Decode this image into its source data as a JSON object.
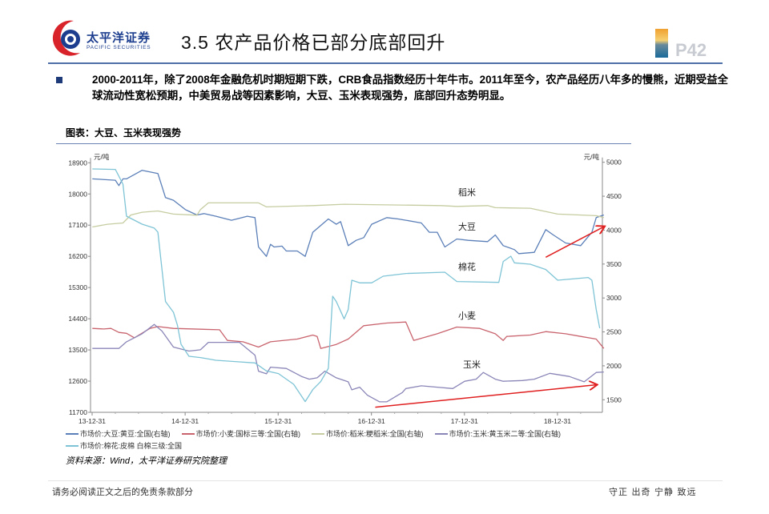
{
  "header": {
    "logo_cn": "太平洋证券",
    "logo_en": "PACIFIC SECURITIES",
    "title": "3.5 农产品价格已部分底部回升",
    "page_number": "P42"
  },
  "body": {
    "bullet_text": "2000-2011年，除了2008年金融危机时期短期下跌，CRB食品指数经历十年牛市。2011年至今，农产品经历八年多的慢熊，近期受益全球流动性宽松预期，中美贸易战等因素影响，大豆、玉米表现强势，底部回升态势明显。"
  },
  "chart_title": "图表：大豆、玉米表现强势",
  "source": "资料来源：Wind，太平洋证券研究院整理",
  "footer": {
    "left": "请务必阅读正文之后的免责条款部分",
    "right": "守正 出奇 宁静 致远"
  },
  "chart_data": {
    "type": "line",
    "left_axis": {
      "unit": "元/吨",
      "ylim": [
        11700,
        18900
      ],
      "ticks": [
        "18900",
        "18000",
        "17100",
        "16200",
        "15300",
        "14400",
        "13500",
        "12600",
        "11700"
      ]
    },
    "right_axis": {
      "unit": "元/吨",
      "ylim": [
        1500,
        5000
      ],
      "ticks": [
        "5000",
        "4500",
        "4000",
        "3500",
        "3000",
        "2500",
        "2000",
        "1500"
      ]
    },
    "x_ticks": [
      "13-12-31",
      "14-12-31",
      "15-12-31",
      "16-12-31",
      "17-12-31",
      "18-12-31"
    ],
    "x_tick_dates": [
      "2013-12-31",
      "2014-12-31",
      "2015-12-31",
      "2016-12-31",
      "2017-12-31",
      "2018-12-31"
    ],
    "grid": false,
    "legend_position": "bottom",
    "series_labels": {
      "rice": "稻米",
      "soybean": "大豆",
      "cotton": "棉花",
      "wheat": "小麦",
      "corn": "玉米"
    },
    "series": [
      {
        "key": "soybean",
        "name": "市场价:大豆:黄豆:全国(右轴)",
        "axis": "right",
        "color": "#5b7fb8",
        "points": [
          [
            "2014-01-01",
            4756
          ],
          [
            "2014-04-01",
            4736
          ],
          [
            "2014-04-15",
            4657
          ],
          [
            "2014-05-01",
            4756
          ],
          [
            "2014-05-15",
            4756
          ],
          [
            "2014-07-15",
            4882
          ],
          [
            "2014-09-15",
            4835
          ],
          [
            "2014-10-15",
            4480
          ],
          [
            "2014-11-15",
            4441
          ],
          [
            "2015-01-01",
            4303
          ],
          [
            "2015-02-15",
            4224
          ],
          [
            "2015-03-15",
            4244
          ],
          [
            "2015-05-01",
            4205
          ],
          [
            "2015-07-01",
            4146
          ],
          [
            "2015-09-01",
            4205
          ],
          [
            "2015-10-01",
            4185
          ],
          [
            "2015-10-15",
            3752
          ],
          [
            "2015-11-15",
            3614
          ],
          [
            "2015-12-01",
            3791
          ],
          [
            "2015-12-15",
            3752
          ],
          [
            "2016-01-15",
            3764
          ],
          [
            "2016-02-01",
            3693
          ],
          [
            "2016-03-15",
            3693
          ],
          [
            "2016-04-15",
            3614
          ],
          [
            "2016-05-15",
            3969
          ],
          [
            "2016-07-15",
            4165
          ],
          [
            "2016-08-15",
            4087
          ],
          [
            "2016-09-01",
            4126
          ],
          [
            "2016-10-01",
            3772
          ],
          [
            "2016-11-01",
            3850
          ],
          [
            "2016-12-01",
            3890
          ],
          [
            "2017-01-01",
            4087
          ],
          [
            "2017-03-01",
            4185
          ],
          [
            "2017-04-15",
            4165
          ],
          [
            "2017-05-15",
            4146
          ],
          [
            "2017-07-15",
            4106
          ],
          [
            "2017-08-15",
            3969
          ],
          [
            "2017-09-15",
            3969
          ],
          [
            "2017-10-15",
            3752
          ],
          [
            "2017-12-01",
            3870
          ],
          [
            "2018-01-15",
            3850
          ],
          [
            "2018-04-01",
            3831
          ],
          [
            "2018-05-01",
            3929
          ],
          [
            "2018-06-01",
            3772
          ],
          [
            "2018-07-15",
            3713
          ],
          [
            "2018-08-01",
            3654
          ],
          [
            "2018-10-01",
            3673
          ],
          [
            "2018-11-15",
            4008
          ],
          [
            "2018-12-15",
            3929
          ],
          [
            "2019-02-01",
            3811
          ],
          [
            "2019-04-01",
            3772
          ],
          [
            "2019-05-15",
            3969
          ],
          [
            "2019-06-01",
            4185
          ],
          [
            "2019-07-01",
            4224
          ]
        ]
      },
      {
        "key": "wheat",
        "name": "市场价:小麦:国标三等:全国(右轴)",
        "axis": "right",
        "color": "#c9646e",
        "points": [
          [
            "2014-01-01",
            2551
          ],
          [
            "2014-02-15",
            2543
          ],
          [
            "2014-03-15",
            2551
          ],
          [
            "2014-04-15",
            2492
          ],
          [
            "2014-05-15",
            2480
          ],
          [
            "2014-06-15",
            2413
          ],
          [
            "2014-08-15",
            2551
          ],
          [
            "2014-09-15",
            2579
          ],
          [
            "2014-11-15",
            2551
          ],
          [
            "2015-05-15",
            2531
          ],
          [
            "2015-06-15",
            2374
          ],
          [
            "2015-08-15",
            2354
          ],
          [
            "2015-10-15",
            2276
          ],
          [
            "2015-12-01",
            2354
          ],
          [
            "2016-03-15",
            2394
          ],
          [
            "2016-05-15",
            2453
          ],
          [
            "2016-06-01",
            2433
          ],
          [
            "2016-06-15",
            2256
          ],
          [
            "2016-08-15",
            2315
          ],
          [
            "2016-10-01",
            2394
          ],
          [
            "2016-12-01",
            2591
          ],
          [
            "2017-03-01",
            2630
          ],
          [
            "2017-05-15",
            2646
          ],
          [
            "2017-06-15",
            2374
          ],
          [
            "2017-09-15",
            2472
          ],
          [
            "2017-12-01",
            2571
          ],
          [
            "2018-03-01",
            2551
          ],
          [
            "2018-05-01",
            2472
          ],
          [
            "2018-06-01",
            2374
          ],
          [
            "2018-06-15",
            2433
          ],
          [
            "2018-09-15",
            2453
          ],
          [
            "2018-11-15",
            2504
          ],
          [
            "2019-02-01",
            2472
          ],
          [
            "2019-04-01",
            2433
          ],
          [
            "2019-06-01",
            2394
          ],
          [
            "2019-07-01",
            2256
          ]
        ]
      },
      {
        "key": "rice",
        "name": "市场价:稻米:粳稻米:全国(右轴)",
        "axis": "right",
        "color": "#c6ccA0",
        "points": [
          [
            "2014-01-01",
            4047
          ],
          [
            "2014-03-01",
            4087
          ],
          [
            "2014-05-01",
            4106
          ],
          [
            "2014-06-01",
            4224
          ],
          [
            "2014-07-15",
            4264
          ],
          [
            "2014-09-15",
            4283
          ],
          [
            "2014-11-15",
            4236
          ],
          [
            "2015-02-15",
            4220
          ],
          [
            "2015-03-01",
            4303
          ],
          [
            "2015-04-01",
            4402
          ],
          [
            "2015-10-15",
            4402
          ],
          [
            "2015-11-15",
            4343
          ],
          [
            "2016-05-15",
            4362
          ],
          [
            "2016-09-15",
            4382
          ],
          [
            "2017-10-01",
            4362
          ],
          [
            "2017-12-01",
            4350
          ],
          [
            "2018-04-01",
            4362
          ],
          [
            "2018-05-01",
            4331
          ],
          [
            "2018-09-15",
            4323
          ],
          [
            "2019-01-01",
            4236
          ],
          [
            "2019-06-01",
            4213
          ],
          [
            "2019-07-01",
            4185
          ]
        ]
      },
      {
        "key": "corn",
        "name": "市场价:玉米:黄玉米二等:全国(右轴)",
        "axis": "right",
        "color": "#8a86b8",
        "points": [
          [
            "2014-01-01",
            2256
          ],
          [
            "2014-04-15",
            2256
          ],
          [
            "2014-05-15",
            2354
          ],
          [
            "2014-07-15",
            2472
          ],
          [
            "2014-09-01",
            2610
          ],
          [
            "2014-10-01",
            2512
          ],
          [
            "2014-11-15",
            2276
          ],
          [
            "2015-01-15",
            2217
          ],
          [
            "2015-03-01",
            2236
          ],
          [
            "2015-04-01",
            2346
          ],
          [
            "2015-08-01",
            2346
          ],
          [
            "2015-10-01",
            2157
          ],
          [
            "2015-10-15",
            1921
          ],
          [
            "2015-11-15",
            1882
          ],
          [
            "2015-12-01",
            1980
          ],
          [
            "2016-02-01",
            1961
          ],
          [
            "2016-04-01",
            1843
          ],
          [
            "2016-05-01",
            1803
          ],
          [
            "2016-06-01",
            1823
          ],
          [
            "2016-07-01",
            1921
          ],
          [
            "2016-08-15",
            1823
          ],
          [
            "2016-10-01",
            1764
          ],
          [
            "2016-10-15",
            1646
          ],
          [
            "2016-11-15",
            1685
          ],
          [
            "2016-12-15",
            1567
          ],
          [
            "2017-02-01",
            1469
          ],
          [
            "2017-03-01",
            1469
          ],
          [
            "2017-05-01",
            1606
          ],
          [
            "2017-05-15",
            1665
          ],
          [
            "2017-07-15",
            1705
          ],
          [
            "2017-09-15",
            1685
          ],
          [
            "2017-11-15",
            1665
          ],
          [
            "2018-01-01",
            1772
          ],
          [
            "2018-02-15",
            1803
          ],
          [
            "2018-03-15",
            1902
          ],
          [
            "2018-05-01",
            1803
          ],
          [
            "2018-06-01",
            1772
          ],
          [
            "2018-08-15",
            1783
          ],
          [
            "2018-10-01",
            1803
          ],
          [
            "2018-12-01",
            1890
          ],
          [
            "2019-02-15",
            1843
          ],
          [
            "2019-04-15",
            1764
          ],
          [
            "2019-06-01",
            1902
          ],
          [
            "2019-07-01",
            1909
          ]
        ]
      },
      {
        "key": "cotton",
        "name": "市场价:棉花:皮棉 白棉三级:全国",
        "axis": "left",
        "color": "#7ec4d6",
        "points": [
          [
            "2014-01-01",
            18723
          ],
          [
            "2014-04-01",
            18708
          ],
          [
            "2014-05-01",
            18284
          ],
          [
            "2014-05-15",
            17360
          ],
          [
            "2014-07-15",
            17129
          ],
          [
            "2014-09-01",
            17014
          ],
          [
            "2014-09-15",
            16898
          ],
          [
            "2014-10-15",
            14896
          ],
          [
            "2014-11-15",
            14588
          ],
          [
            "2014-12-01",
            14203
          ],
          [
            "2014-12-15",
            13664
          ],
          [
            "2015-01-15",
            13318
          ],
          [
            "2015-03-01",
            13279
          ],
          [
            "2015-05-01",
            13202
          ],
          [
            "2015-07-15",
            13164
          ],
          [
            "2015-10-01",
            13125
          ],
          [
            "2015-11-15",
            12894
          ],
          [
            "2016-01-01",
            12817
          ],
          [
            "2016-03-01",
            12509
          ],
          [
            "2016-04-15",
            12009
          ],
          [
            "2016-05-15",
            12355
          ],
          [
            "2016-06-15",
            12586
          ],
          [
            "2016-07-15",
            12971
          ],
          [
            "2016-08-01",
            15050
          ],
          [
            "2016-08-15",
            14896
          ],
          [
            "2016-09-15",
            14396
          ],
          [
            "2016-10-01",
            14665
          ],
          [
            "2016-10-15",
            15512
          ],
          [
            "2016-11-15",
            15435
          ],
          [
            "2017-01-01",
            15435
          ],
          [
            "2017-02-15",
            15628
          ],
          [
            "2017-05-15",
            15705
          ],
          [
            "2017-10-15",
            15743
          ],
          [
            "2017-12-01",
            15474
          ],
          [
            "2018-05-15",
            15450
          ],
          [
            "2018-06-01",
            16051
          ],
          [
            "2018-07-01",
            16205
          ],
          [
            "2018-07-15",
            16013
          ],
          [
            "2018-09-15",
            15974
          ],
          [
            "2018-11-15",
            15820
          ],
          [
            "2019-01-01",
            15512
          ],
          [
            "2019-05-01",
            15589
          ],
          [
            "2019-05-15",
            15512
          ],
          [
            "2019-06-01",
            14665
          ],
          [
            "2019-06-15",
            14126
          ]
        ]
      }
    ],
    "annotations": [
      {
        "type": "arrow",
        "color": "#e02020",
        "from": [
          "2018-11-15",
          3600
        ],
        "to": [
          "2019-07-01",
          4050
        ]
      },
      {
        "type": "arrow",
        "color": "#e02020",
        "from": [
          "2017-01-15",
          1390
        ],
        "to": [
          "2019-06-01",
          1720
        ]
      }
    ]
  }
}
